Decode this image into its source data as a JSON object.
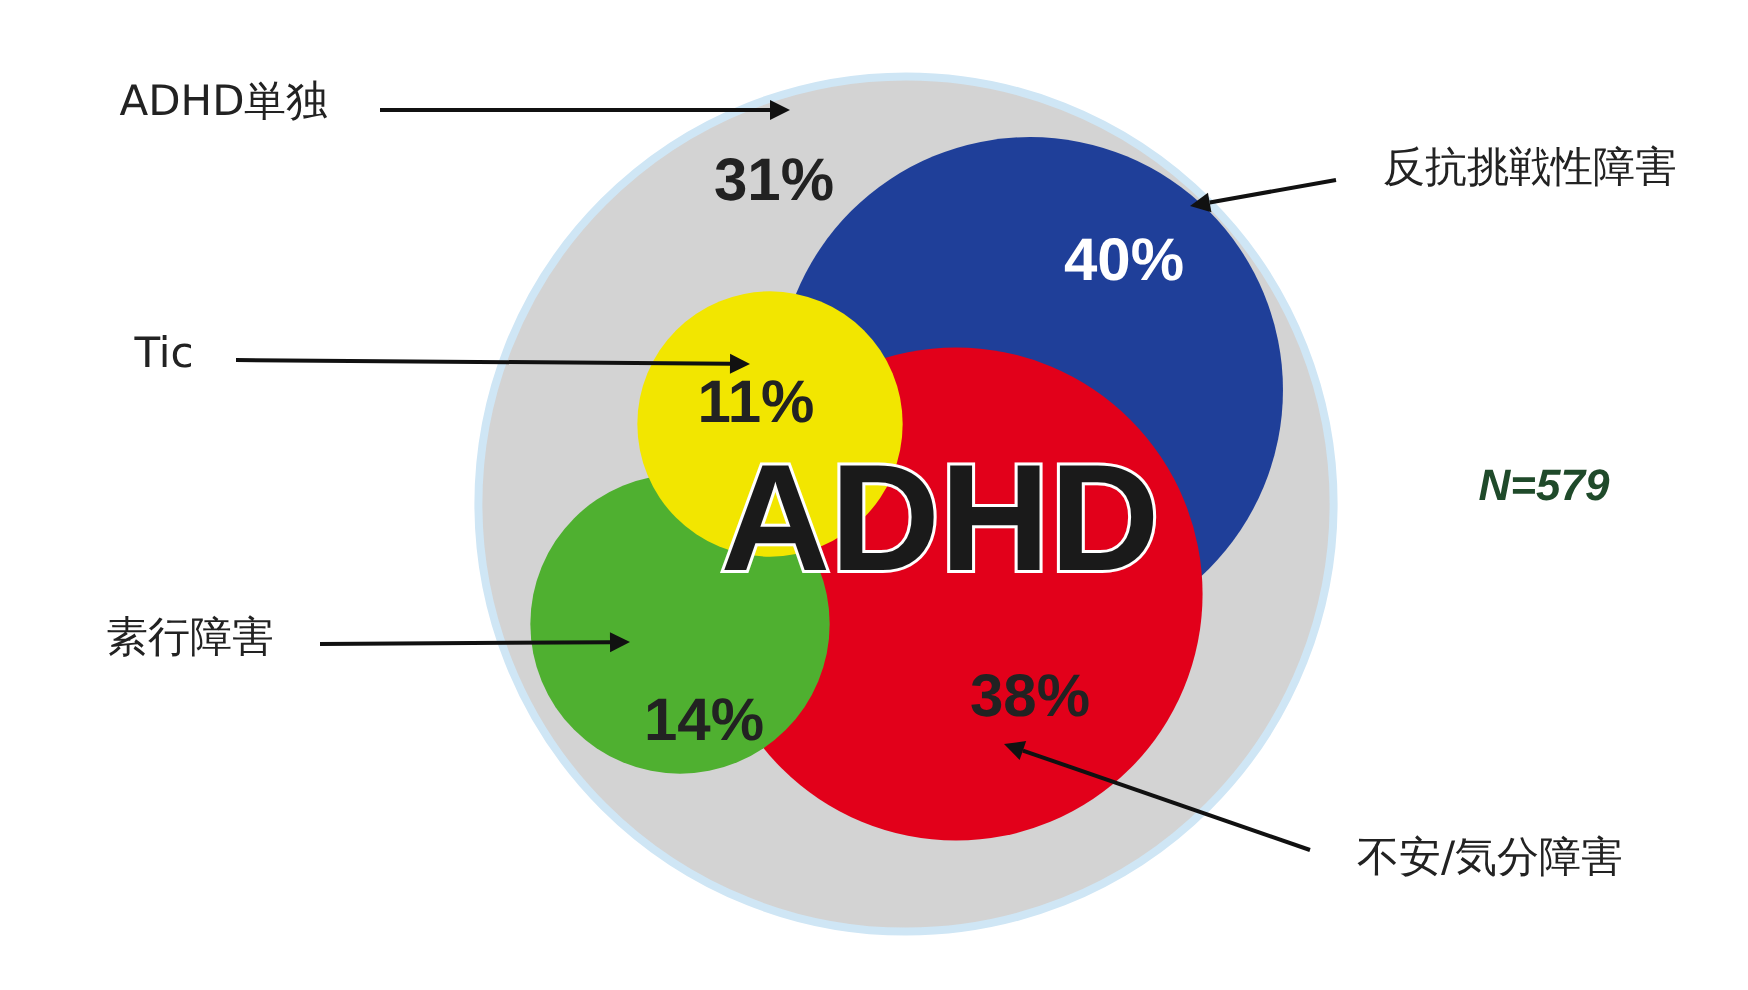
{
  "chart_data": {
    "type": "other",
    "categories": [
      "ADHD単独",
      "反抗挑戦性障害",
      "Tic",
      "素行障害",
      "不安/気分障害"
    ],
    "values": [
      31,
      40,
      11,
      14,
      38
    ],
    "value_labels": [
      "31%",
      "40%",
      "11%",
      "14%",
      "38%"
    ],
    "colors": [
      "#d3d3d3",
      "#1f3f99",
      "#f2e600",
      "#4fb030",
      "#e2001a"
    ],
    "annotations": [
      "ADHD",
      "N=579"
    ]
  }
}
